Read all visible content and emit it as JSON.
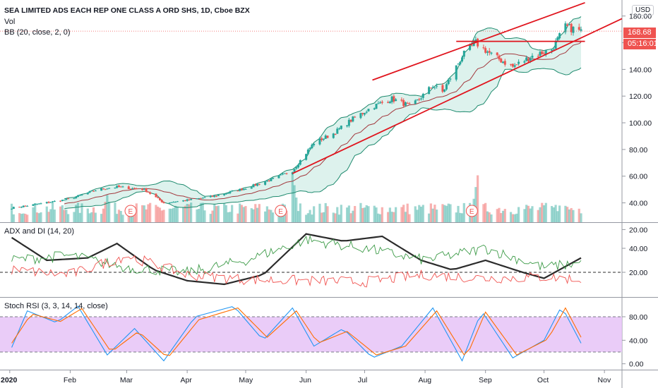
{
  "header": {
    "title": "SEA LIMITED ADS EACH REP ONE CLASS A ORD SHS, 1D, Cboe BZX",
    "vol_label": "Vol",
    "bb_label": "BB (20, close, 2, 0)"
  },
  "price_axis": {
    "currency": "USD",
    "last_price": "168.68",
    "countdown": "05:16:01",
    "ticks": [
      "180.00",
      "160.00",
      "140.00",
      "120.00",
      "100.00",
      "80.00",
      "60.00",
      "40.00",
      "20.00"
    ]
  },
  "adx_panel": {
    "label": "ADX and DI (14, 20)",
    "ticks": [
      "40.00",
      "20.00"
    ],
    "level": 20
  },
  "rsi_panel": {
    "label": "Stoch RSI (3, 3, 14, 14, close)",
    "ticks": [
      "80.00",
      "40.00",
      "0.00"
    ],
    "bands": [
      80,
      20
    ]
  },
  "time_axis": {
    "labels": [
      "2020",
      "Feb",
      "Mar",
      "Apr",
      "May",
      "Jun",
      "Jul",
      "Aug",
      "Sep",
      "Oct",
      "Nov"
    ]
  },
  "earnings_marker": "E",
  "colors": {
    "up": "#26a69a",
    "down": "#ef5350",
    "bb_basis": "#a3393e",
    "bb_band": "#1e8a6e",
    "bb_fill": "#d5efe9",
    "trend": "#e0141d",
    "adx": "#2b2b2b",
    "di_plus": "#3d9b48",
    "di_minus": "#f05350",
    "stoch_k": "#2196f3",
    "stoch_d": "#ff6d00",
    "rsi_fill": "#e6c3f7",
    "price_tag": "#ef5350"
  },
  "chart_data": [
    {
      "type": "candlestick",
      "title": "SEA LIMITED ADS EACH REP ONE CLASS A ORD SHS, 1D, Cboe BZX",
      "x_range": [
        "2019-12-27",
        "2020-11-10"
      ],
      "ylim": [
        25,
        190
      ],
      "last_price": 168.68,
      "close_path": [
        [
          "2020-01-01",
          36
        ],
        [
          "2020-01-15",
          39
        ],
        [
          "2020-02-01",
          43
        ],
        [
          "2020-02-15",
          50
        ],
        [
          "2020-02-25",
          52
        ],
        [
          "2020-03-10",
          50
        ],
        [
          "2020-03-20",
          40
        ],
        [
          "2020-04-01",
          42
        ],
        [
          "2020-04-15",
          45
        ],
        [
          "2020-05-01",
          51
        ],
        [
          "2020-05-15",
          58
        ],
        [
          "2020-05-25",
          64
        ],
        [
          "2020-06-05",
          85
        ],
        [
          "2020-06-15",
          92
        ],
        [
          "2020-06-25",
          103
        ],
        [
          "2020-07-05",
          112
        ],
        [
          "2020-07-15",
          118
        ],
        [
          "2020-07-25",
          112
        ],
        [
          "2020-08-05",
          128
        ],
        [
          "2020-08-10",
          123
        ],
        [
          "2020-08-20",
          150
        ],
        [
          "2020-08-27",
          160
        ],
        [
          "2020-09-05",
          150
        ],
        [
          "2020-09-15",
          142
        ],
        [
          "2020-09-25",
          150
        ],
        [
          "2020-10-05",
          155
        ],
        [
          "2020-10-12",
          172
        ],
        [
          "2020-10-20",
          168.68
        ]
      ],
      "bollinger": {
        "period": 20,
        "source": "close",
        "mult": 2,
        "offset": 0,
        "approx_upper": [
          [
            "2020-06-15",
            104
          ],
          [
            "2020-08-30",
            165
          ],
          [
            "2020-10-20",
            178
          ]
        ],
        "approx_lower": [
          [
            "2020-06-15",
            62
          ],
          [
            "2020-08-30",
            118
          ],
          [
            "2020-10-20",
            145
          ]
        ]
      },
      "trendlines": [
        {
          "from": [
            "2020-07-05",
            132
          ],
          "to": [
            "2020-10-22",
            190
          ]
        },
        {
          "from": [
            "2020-05-25",
            62
          ],
          "to": [
            "2020-11-10",
            178
          ]
        },
        {
          "from": [
            "2020-08-17",
            161
          ],
          "to": [
            "2020-10-22",
            161
          ]
        }
      ]
    },
    {
      "type": "bar",
      "title": "Vol",
      "note": "volume histogram, unscaled",
      "bars_per_month_peaks": [
        [
          "2020-05-25",
          1.0
        ],
        [
          "2020-08-28",
          0.95
        ],
        [
          "2020-02-20",
          0.55
        ],
        [
          "2020-10-10",
          0.45
        ]
      ]
    },
    {
      "type": "line",
      "title": "ADX and DI (14, 20)",
      "ylim": [
        0,
        60
      ],
      "series": [
        {
          "name": "ADX",
          "values": [
            [
              "2020-01-01",
              50
            ],
            [
              "2020-01-20",
              30
            ],
            [
              "2020-02-10",
              32
            ],
            [
              "2020-02-25",
              44
            ],
            [
              "2020-03-15",
              22
            ],
            [
              "2020-04-01",
              13
            ],
            [
              "2020-04-20",
              10
            ],
            [
              "2020-05-10",
              18
            ],
            [
              "2020-06-01",
              52
            ],
            [
              "2020-06-20",
              46
            ],
            [
              "2020-07-10",
              50
            ],
            [
              "2020-07-30",
              30
            ],
            [
              "2020-08-15",
              22
            ],
            [
              "2020-09-01",
              30
            ],
            [
              "2020-09-20",
              20
            ],
            [
              "2020-10-01",
              15
            ],
            [
              "2020-10-20",
              32
            ]
          ]
        },
        {
          "name": "+DI",
          "values": [
            [
              "2020-01-01",
              30
            ],
            [
              "2020-02-01",
              34
            ],
            [
              "2020-03-01",
              24
            ],
            [
              "2020-04-01",
              20
            ],
            [
              "2020-05-01",
              30
            ],
            [
              "2020-06-01",
              47
            ],
            [
              "2020-07-01",
              40
            ],
            [
              "2020-08-01",
              30
            ],
            [
              "2020-09-01",
              40
            ],
            [
              "2020-10-01",
              24
            ],
            [
              "2020-10-20",
              28
            ]
          ]
        },
        {
          "name": "-DI",
          "values": [
            [
              "2020-01-01",
              22
            ],
            [
              "2020-02-01",
              18
            ],
            [
              "2020-03-01",
              34
            ],
            [
              "2020-04-01",
              18
            ],
            [
              "2020-05-01",
              14
            ],
            [
              "2020-06-01",
              13
            ],
            [
              "2020-07-01",
              12
            ],
            [
              "2020-08-01",
              18
            ],
            [
              "2020-09-01",
              15
            ],
            [
              "2020-10-01",
              16
            ],
            [
              "2020-10-20",
              14
            ]
          ]
        }
      ]
    },
    {
      "type": "line",
      "title": "Stoch RSI (3, 3, 14, 14, close)",
      "ylim": [
        -10,
        110
      ],
      "series": [
        {
          "name": "%K",
          "values": [
            [
              "2020-01-01",
              20
            ],
            [
              "2020-01-10",
              90
            ],
            [
              "2020-01-25",
              70
            ],
            [
              "2020-02-05",
              98
            ],
            [
              "2020-02-20",
              15
            ],
            [
              "2020-03-05",
              60
            ],
            [
              "2020-03-20",
              5
            ],
            [
              "2020-04-05",
              80
            ],
            [
              "2020-04-25",
              98
            ],
            [
              "2020-05-10",
              40
            ],
            [
              "2020-05-25",
              95
            ],
            [
              "2020-06-05",
              30
            ],
            [
              "2020-06-20",
              60
            ],
            [
              "2020-07-05",
              10
            ],
            [
              "2020-07-20",
              30
            ],
            [
              "2020-08-05",
              95
            ],
            [
              "2020-08-20",
              5
            ],
            [
              "2020-08-30",
              90
            ],
            [
              "2020-09-15",
              10
            ],
            [
              "2020-10-01",
              40
            ],
            [
              "2020-10-10",
              98
            ],
            [
              "2020-10-20",
              35
            ]
          ]
        },
        {
          "name": "%D",
          "values": [
            [
              "2020-01-01",
              30
            ],
            [
              "2020-01-12",
              85
            ],
            [
              "2020-01-27",
              72
            ],
            [
              "2020-02-07",
              94
            ],
            [
              "2020-02-22",
              20
            ],
            [
              "2020-03-07",
              55
            ],
            [
              "2020-03-22",
              10
            ],
            [
              "2020-04-07",
              75
            ],
            [
              "2020-04-27",
              95
            ],
            [
              "2020-05-12",
              45
            ],
            [
              "2020-05-27",
              90
            ],
            [
              "2020-06-07",
              35
            ],
            [
              "2020-06-22",
              55
            ],
            [
              "2020-07-07",
              15
            ],
            [
              "2020-07-22",
              30
            ],
            [
              "2020-08-07",
              90
            ],
            [
              "2020-08-22",
              10
            ],
            [
              "2020-09-01",
              88
            ],
            [
              "2020-09-17",
              15
            ],
            [
              "2020-10-03",
              42
            ],
            [
              "2020-10-12",
              95
            ],
            [
              "2020-10-20",
              45
            ]
          ]
        }
      ]
    }
  ]
}
